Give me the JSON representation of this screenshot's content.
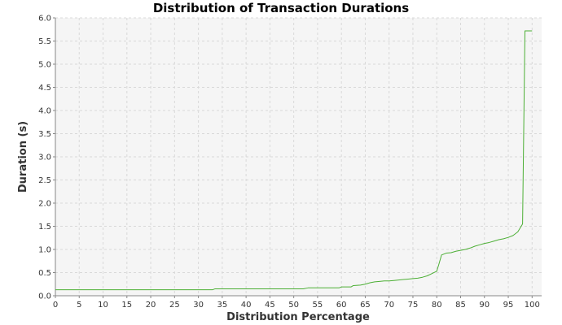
{
  "chart_data": {
    "type": "line",
    "title": "Distribution of Transaction Durations",
    "xlabel": "Distribution Percentage",
    "ylabel": "Duration (s)",
    "xlim": [
      0,
      102
    ],
    "ylim": [
      0,
      6.0
    ],
    "grid": true,
    "legend": "none",
    "xticks": [
      "0",
      "5",
      "10",
      "15",
      "20",
      "25",
      "30",
      "35",
      "40",
      "45",
      "50",
      "55",
      "60",
      "65",
      "70",
      "75",
      "80",
      "85",
      "90",
      "95",
      "100"
    ],
    "yticks": [
      "0.0",
      "0.5",
      "1.0",
      "1.5",
      "2.0",
      "2.5",
      "3.0",
      "3.5",
      "4.0",
      "4.5",
      "5.0",
      "5.5",
      "6.0"
    ],
    "colors": {
      "line": "#4caf35",
      "plot_bg": "#f5f5f5",
      "grid": "#d9d9d9"
    },
    "series": [
      {
        "x": [
          0,
          33,
          33.5,
          52,
          53,
          59.5,
          60,
          62,
          62.5,
          64,
          65,
          66,
          67,
          68,
          69,
          70,
          71,
          72,
          73,
          74,
          75,
          76,
          77,
          78,
          79,
          80,
          80.5,
          81,
          82,
          83,
          84,
          85,
          86,
          87,
          88,
          89,
          90,
          91,
          92,
          93,
          94,
          95,
          96,
          97,
          98,
          98.5,
          99,
          100
        ],
        "y": [
          0.13,
          0.13,
          0.15,
          0.15,
          0.17,
          0.17,
          0.19,
          0.19,
          0.22,
          0.23,
          0.25,
          0.28,
          0.3,
          0.31,
          0.32,
          0.32,
          0.33,
          0.34,
          0.35,
          0.36,
          0.37,
          0.38,
          0.4,
          0.43,
          0.48,
          0.53,
          0.7,
          0.88,
          0.92,
          0.93,
          0.96,
          0.98,
          1.0,
          1.03,
          1.07,
          1.1,
          1.13,
          1.15,
          1.18,
          1.21,
          1.23,
          1.26,
          1.3,
          1.38,
          1.55,
          5.72,
          5.72,
          5.72
        ]
      }
    ]
  }
}
